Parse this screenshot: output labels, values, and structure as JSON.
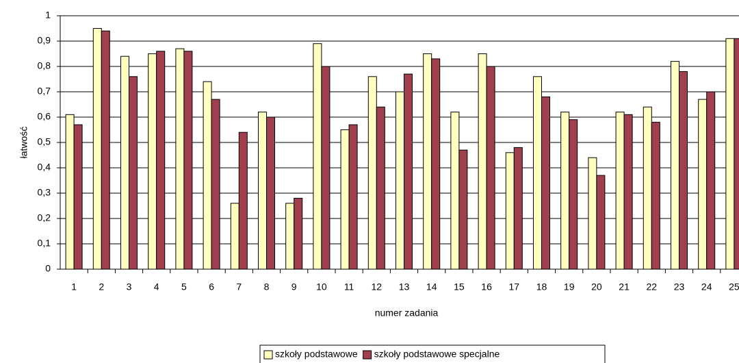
{
  "chart_data": {
    "type": "bar",
    "x_label": "numer zadania",
    "y_label": "łatwość",
    "categories": [
      "1",
      "2",
      "3",
      "4",
      "5",
      "6",
      "7",
      "8",
      "9",
      "10",
      "11",
      "12",
      "13",
      "14",
      "15",
      "16",
      "17",
      "18",
      "19",
      "20",
      "21",
      "22",
      "23",
      "24",
      "25"
    ],
    "series": [
      {
        "name": "szkoły podstawowe",
        "color": "#ffffc0",
        "values": [
          0.61,
          0.95,
          0.84,
          0.85,
          0.87,
          0.74,
          0.26,
          0.62,
          0.26,
          0.89,
          0.55,
          0.76,
          0.7,
          0.85,
          0.62,
          0.85,
          0.46,
          0.76,
          0.62,
          0.44,
          0.62,
          0.64,
          0.82,
          0.67,
          0.91
        ]
      },
      {
        "name": "szkoły podstawowe specjalne",
        "color": "#a0404f",
        "values": [
          0.57,
          0.94,
          0.76,
          0.86,
          0.86,
          0.67,
          0.54,
          0.6,
          0.28,
          0.8,
          0.57,
          0.64,
          0.77,
          0.83,
          0.47,
          0.8,
          0.48,
          0.68,
          0.59,
          0.37,
          0.61,
          0.58,
          0.78,
          0.7,
          0.91
        ]
      }
    ],
    "ylim": [
      0,
      1
    ],
    "yticks": [
      0,
      {
        "value": 0.1,
        "label": "0,1"
      },
      {
        "value": 0.2,
        "label": "0,2"
      },
      {
        "value": 0.3,
        "label": "0,3"
      },
      {
        "value": 0.4,
        "label": "0,4"
      },
      {
        "value": 0.5,
        "label": "0,5"
      },
      {
        "value": 0.6,
        "label": "0,6"
      },
      {
        "value": 0.7,
        "label": "0,7"
      },
      {
        "value": 0.8,
        "label": "0,8"
      },
      {
        "value": 0.9,
        "label": "0,9"
      },
      1
    ],
    "grid": true,
    "legend": "bottom"
  }
}
